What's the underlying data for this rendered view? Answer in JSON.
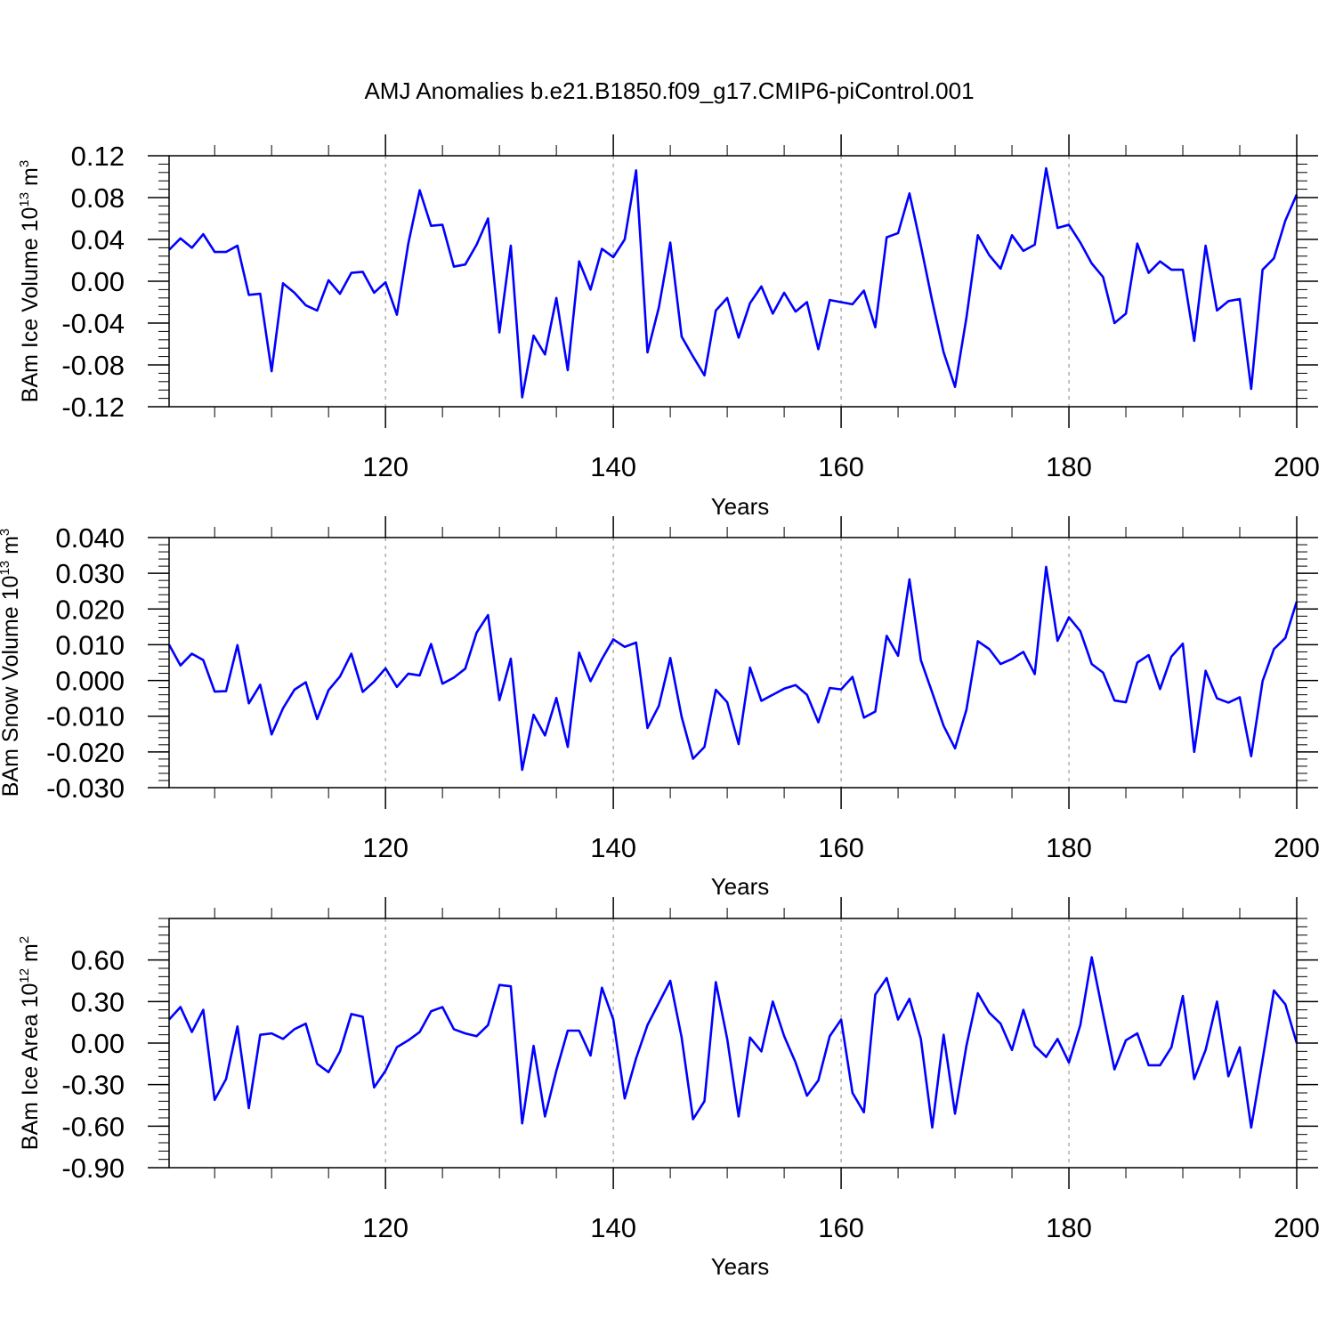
{
  "title": "AMJ Anomalies b.e21.B1850.f09_g17.CMIP6-piControl.001",
  "chart_data": [
    {
      "type": "line",
      "ylabel_prefix": "BAm Ice Volume 10",
      "ylabel_exp": "13",
      "ylabel_unit": " m",
      "ylabel_unit_exp": "3",
      "xlabel": "Years",
      "xlim": [
        101,
        200
      ],
      "ylim": [
        -0.12,
        0.12
      ],
      "xticks": [
        120,
        140,
        160,
        180,
        200
      ],
      "xtick_labels": [
        "120",
        "140",
        "160",
        "180",
        "200"
      ],
      "yticks": [
        -0.12,
        -0.08,
        -0.04,
        0.0,
        0.04,
        0.08,
        0.12
      ],
      "ytick_labels": [
        "-0.12",
        "-0.08",
        "-0.04",
        "0.00",
        "0.04",
        "0.08",
        "0.12"
      ],
      "line_color": "#0000ff",
      "grid_color": "#999999",
      "x_start": 101,
      "values": [
        0.03,
        0.041,
        0.032,
        0.045,
        0.028,
        0.028,
        0.034,
        -0.013,
        -0.012,
        -0.086,
        -0.002,
        -0.011,
        -0.023,
        -0.028,
        0.001,
        -0.012,
        0.008,
        0.009,
        -0.011,
        -0.001,
        -0.032,
        0.036,
        0.087,
        0.053,
        0.054,
        0.014,
        0.016,
        0.035,
        0.06,
        -0.049,
        0.034,
        -0.111,
        -0.052,
        -0.07,
        -0.016,
        -0.085,
        0.019,
        -0.008,
        0.031,
        0.023,
        0.04,
        0.106,
        -0.068,
        -0.025,
        0.037,
        -0.053,
        -0.072,
        -0.09,
        -0.028,
        -0.016,
        -0.054,
        -0.021,
        -0.005,
        -0.031,
        -0.011,
        -0.029,
        -0.02,
        -0.065,
        -0.018,
        -0.02,
        -0.022,
        -0.009,
        -0.044,
        0.042,
        0.046,
        0.084,
        0.034,
        -0.019,
        -0.068,
        -0.101,
        -0.035,
        0.044,
        0.025,
        0.012,
        0.044,
        0.029,
        0.035,
        0.108,
        0.051,
        0.054,
        0.037,
        0.017,
        0.004,
        -0.04,
        -0.031,
        0.036,
        0.008,
        0.019,
        0.011,
        0.011,
        -0.057,
        0.034,
        -0.028,
        -0.019,
        -0.017,
        -0.103,
        0.011,
        0.022,
        0.058,
        0.083
      ]
    },
    {
      "type": "line",
      "ylabel_prefix": "BAm Snow Volume 10",
      "ylabel_exp": "13",
      "ylabel_unit": " m",
      "ylabel_unit_exp": "3",
      "xlabel": "Years",
      "xlim": [
        101,
        200
      ],
      "ylim": [
        -0.03,
        0.04
      ],
      "xticks": [
        120,
        140,
        160,
        180,
        200
      ],
      "xtick_labels": [
        "120",
        "140",
        "160",
        "180",
        "200"
      ],
      "yticks": [
        -0.03,
        -0.02,
        -0.01,
        0.0,
        0.01,
        0.02,
        0.03,
        0.04
      ],
      "ytick_labels": [
        "-0.030",
        "-0.020",
        "-0.010",
        "0.000",
        "0.010",
        "0.020",
        "0.030",
        "0.040"
      ],
      "line_color": "#0000ff",
      "grid_color": "#999999",
      "x_start": 101,
      "values": [
        0.01,
        0.0042,
        0.0075,
        0.0057,
        -0.0031,
        -0.003,
        0.0099,
        -0.0064,
        -0.0012,
        -0.0151,
        -0.0078,
        -0.0026,
        -0.0005,
        -0.0108,
        -0.0027,
        0.0011,
        0.0075,
        -0.0032,
        -0.0003,
        0.0034,
        -0.0018,
        0.0019,
        0.0014,
        0.0102,
        -0.0009,
        0.0008,
        0.0033,
        0.0134,
        0.0183,
        -0.0055,
        0.0061,
        -0.025,
        -0.0096,
        -0.0154,
        -0.0049,
        -0.0186,
        0.0078,
        -0.0002,
        0.006,
        0.0115,
        0.0094,
        0.0106,
        -0.0133,
        -0.0071,
        0.0063,
        -0.0102,
        -0.0219,
        -0.0186,
        -0.0026,
        -0.0061,
        -0.0178,
        0.0036,
        -0.0057,
        -0.004,
        -0.0023,
        -0.0013,
        -0.004,
        -0.0117,
        -0.0021,
        -0.0025,
        0.001,
        -0.0104,
        -0.0087,
        0.0125,
        0.0069,
        0.0283,
        0.0057,
        -0.0034,
        -0.0127,
        -0.019,
        -0.0082,
        0.011,
        0.0088,
        0.0046,
        0.006,
        0.008,
        0.0018,
        0.0318,
        0.0111,
        0.0177,
        0.0138,
        0.0046,
        0.0022,
        -0.0056,
        -0.0061,
        0.005,
        0.0071,
        -0.0024,
        0.0067,
        0.0103,
        -0.02,
        0.0027,
        -0.005,
        -0.0062,
        -0.0047,
        -0.0212,
        -0.0002,
        0.0088,
        0.0119,
        0.0221
      ]
    },
    {
      "type": "line",
      "ylabel_prefix": "BAm Ice Area 10",
      "ylabel_exp": "12",
      "ylabel_unit": " m",
      "ylabel_unit_exp": "2",
      "xlabel": "Years",
      "xlim": [
        101,
        200
      ],
      "ylim": [
        -0.9,
        0.9
      ],
      "xticks": [
        120,
        140,
        160,
        180,
        200
      ],
      "xtick_labels": [
        "120",
        "140",
        "160",
        "180",
        "200"
      ],
      "yticks": [
        -0.9,
        -0.6,
        -0.3,
        0.0,
        0.3,
        0.6
      ],
      "ytick_labels": [
        "-0.90",
        "-0.60",
        "-0.30",
        "0.00",
        "0.30",
        "0.60"
      ],
      "line_color": "#0000ff",
      "grid_color": "#999999",
      "x_start": 101,
      "values": [
        0.17,
        0.26,
        0.08,
        0.24,
        -0.41,
        -0.26,
        0.12,
        -0.47,
        0.06,
        0.07,
        0.03,
        0.1,
        0.14,
        -0.15,
        -0.21,
        -0.06,
        0.21,
        0.19,
        -0.32,
        -0.2,
        -0.03,
        0.02,
        0.08,
        0.23,
        0.26,
        0.1,
        0.07,
        0.05,
        0.13,
        0.42,
        0.41,
        -0.58,
        -0.02,
        -0.53,
        -0.2,
        0.09,
        0.09,
        -0.09,
        0.4,
        0.17,
        -0.4,
        -0.11,
        0.13,
        0.29,
        0.45,
        0.04,
        -0.55,
        -0.42,
        0.44,
        0.03,
        -0.53,
        0.04,
        -0.06,
        0.3,
        0.05,
        -0.14,
        -0.38,
        -0.27,
        0.05,
        0.17,
        -0.36,
        -0.5,
        0.35,
        0.47,
        0.17,
        0.32,
        0.03,
        -0.61,
        0.06,
        -0.51,
        -0.02,
        0.36,
        0.22,
        0.14,
        -0.05,
        0.24,
        -0.02,
        -0.1,
        0.03,
        -0.14,
        0.13,
        0.62,
        0.21,
        -0.19,
        0.02,
        0.07,
        -0.16,
        -0.16,
        -0.03,
        0.34,
        -0.26,
        -0.05,
        0.3,
        -0.24,
        -0.03,
        -0.61,
        -0.12,
        0.38,
        0.28,
        0.0
      ]
    }
  ]
}
